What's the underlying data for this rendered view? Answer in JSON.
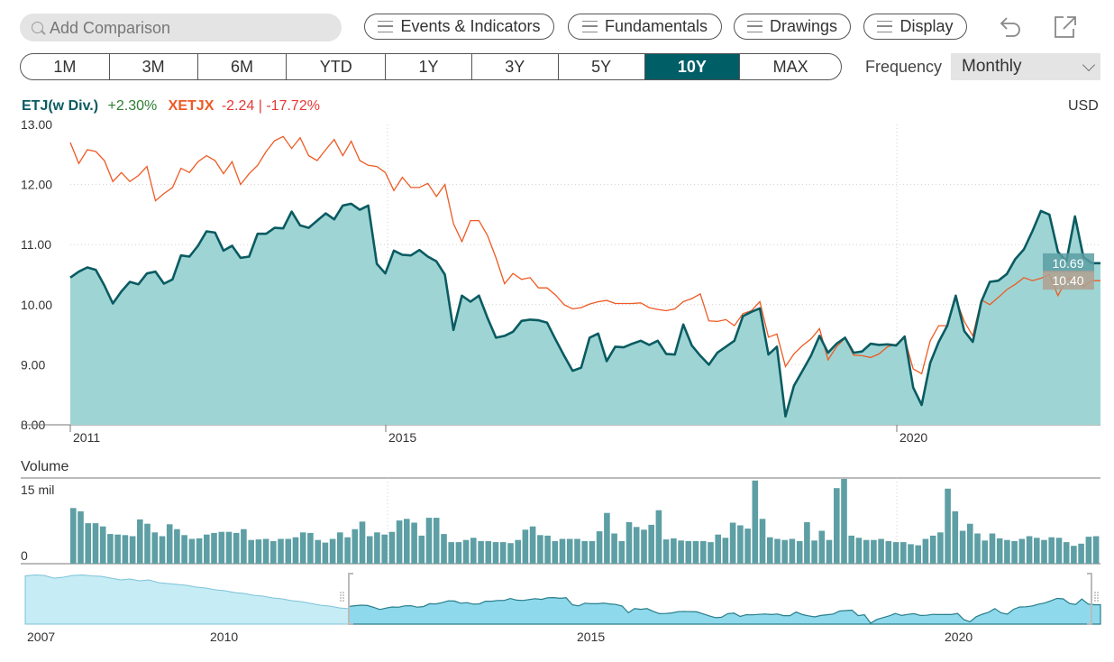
{
  "search": {
    "placeholder": "Add Comparison"
  },
  "toolbar": {
    "events_label": "Events & Indicators",
    "fundamentals_label": "Fundamentals",
    "drawings_label": "Drawings",
    "display_label": "Display"
  },
  "periods": [
    "1M",
    "3M",
    "6M",
    "YTD",
    "1Y",
    "3Y",
    "5Y",
    "10Y",
    "MAX"
  ],
  "active_period": "10Y",
  "frequency": {
    "label": "Frequency",
    "value": "Monthly"
  },
  "legend": {
    "primary_name": "ETJ(w Div.)",
    "primary_change": "+2.30%",
    "compare_name": "XETJX",
    "compare_change": "-2.24",
    "separator": "|",
    "compare_pct": "-17.72%",
    "currency": "USD"
  },
  "colors": {
    "primary_line": "#0a5b62",
    "primary_fill": "#9ed5d4",
    "compare_line": "#ee5a24",
    "volume_bar": "#5d9fa4",
    "positive_text": "#2e7d32",
    "negative_text": "#e53935",
    "active_tab": "#005e67",
    "navigator_fill": "#c6ecf5"
  },
  "chart_data": [
    {
      "type": "area",
      "y_ticks": [
        "13.00",
        "12.00",
        "11.00",
        "10.00",
        "9.00",
        "8.00"
      ],
      "x_ticks": [
        "2011",
        "2015",
        "2020"
      ],
      "ylim": [
        8,
        13
      ],
      "grid": true,
      "series": [
        {
          "name": "ETJ(w Div.)",
          "last_label": "10.69",
          "values": [
            10.45,
            10.55,
            10.62,
            10.58,
            10.32,
            10.02,
            10.22,
            10.38,
            10.34,
            10.52,
            10.55,
            10.35,
            10.42,
            10.82,
            10.8,
            10.98,
            11.22,
            11.2,
            10.9,
            10.98,
            10.78,
            10.8,
            11.18,
            11.18,
            11.28,
            11.27,
            11.55,
            11.32,
            11.28,
            11.4,
            11.52,
            11.42,
            11.65,
            11.68,
            11.58,
            11.65,
            10.68,
            10.52,
            10.9,
            10.83,
            10.82,
            10.91,
            10.8,
            10.72,
            10.5,
            9.58,
            10.15,
            10.05,
            10.15,
            9.78,
            9.45,
            9.48,
            9.55,
            9.73,
            9.75,
            9.74,
            9.7,
            9.42,
            9.15,
            8.9,
            8.95,
            9.45,
            9.52,
            9.06,
            9.3,
            9.29,
            9.35,
            9.4,
            9.33,
            9.4,
            9.18,
            9.17,
            9.67,
            9.32,
            9.15,
            9.0,
            9.2,
            9.3,
            9.4,
            9.81,
            9.88,
            9.94,
            9.17,
            9.3,
            8.14,
            8.65,
            8.9,
            9.15,
            9.48,
            9.2,
            9.35,
            9.45,
            9.2,
            9.22,
            9.35,
            9.33,
            9.34,
            9.32,
            9.47,
            8.62,
            8.33,
            9.03,
            9.38,
            9.65,
            10.15,
            9.56,
            9.38,
            10.05,
            10.38,
            10.4,
            10.51,
            10.76,
            10.92,
            11.22,
            11.56,
            11.5,
            10.88,
            10.72,
            11.47,
            10.79,
            10.69,
            10.69
          ]
        },
        {
          "name": "XETJX",
          "last_label": "10.40",
          "values": [
            12.7,
            12.35,
            12.58,
            12.55,
            12.4,
            12.05,
            12.2,
            12.05,
            12.15,
            12.3,
            11.73,
            11.85,
            11.95,
            12.27,
            12.2,
            12.38,
            12.48,
            12.4,
            12.18,
            12.38,
            12.0,
            12.18,
            12.32,
            12.55,
            12.73,
            12.8,
            12.6,
            12.78,
            12.48,
            12.4,
            12.58,
            12.75,
            12.48,
            12.72,
            12.4,
            12.32,
            12.3,
            12.2,
            11.9,
            12.12,
            11.95,
            11.95,
            12.02,
            11.8,
            12.0,
            11.35,
            11.05,
            11.4,
            11.4,
            11.15,
            10.78,
            10.35,
            10.52,
            10.42,
            10.45,
            10.28,
            10.28,
            10.16,
            10.0,
            9.93,
            9.95,
            10.01,
            10.05,
            10.07,
            10.02,
            10.02,
            10.02,
            10.03,
            9.95,
            9.92,
            9.9,
            9.93,
            10.05,
            10.1,
            10.18,
            9.73,
            9.72,
            9.75,
            9.65,
            9.85,
            9.9,
            10.05,
            9.46,
            9.51,
            8.97,
            9.18,
            9.32,
            9.43,
            9.6,
            9.08,
            9.3,
            9.44,
            9.16,
            9.15,
            9.12,
            9.18,
            9.3,
            9.34,
            9.44,
            8.93,
            8.85,
            9.4,
            9.65,
            9.65,
            10.1,
            9.72,
            9.48,
            10.08,
            10.0,
            10.12,
            10.25,
            10.34,
            10.45,
            10.4,
            10.44,
            10.5,
            10.15,
            10.42,
            10.45,
            10.3,
            10.4,
            10.4
          ]
        }
      ]
    },
    {
      "type": "bar",
      "title": "Volume",
      "y_ticks": [
        "15 mil",
        "0"
      ],
      "ylim": [
        0,
        15
      ],
      "values": [
        10.3,
        9.7,
        7.5,
        7.5,
        6.9,
        5.5,
        5.4,
        5.3,
        5.1,
        8.2,
        7.4,
        5.8,
        5.1,
        7.3,
        6.4,
        5.3,
        4.6,
        4.7,
        5.4,
        5.7,
        5.9,
        5.9,
        5.7,
        6.4,
        4.4,
        4.5,
        4.6,
        4.2,
        4.6,
        4.6,
        4.9,
        5.8,
        5.7,
        4.4,
        3.9,
        4.6,
        5.8,
        4.9,
        6.4,
        7.8,
        5.1,
        5.8,
        5.4,
        5.9,
        8.0,
        8.3,
        7.6,
        5.2,
        8.5,
        8.5,
        5.5,
        4.0,
        4.0,
        4.4,
        4.8,
        4.2,
        4.2,
        4.0,
        4.0,
        3.8,
        4.4,
        6.3,
        6.9,
        5.3,
        5.2,
        4.2,
        4.6,
        4.6,
        4.6,
        4.2,
        4.2,
        6.0,
        9.4,
        5.6,
        4.2,
        7.7,
        6.8,
        6.3,
        7.2,
        9.9,
        4.5,
        4.7,
        4.3,
        4.2,
        4.2,
        4.2,
        4.0,
        5.4,
        4.8,
        7.6,
        7.1,
        6.5,
        15.4,
        8.3,
        4.9,
        4.6,
        4.4,
        4.6,
        4.2,
        7.7,
        4.3,
        6.1,
        4.4,
        14.0,
        15.7,
        5.2,
        4.8,
        4.4,
        4.4,
        4.6,
        4.2,
        4.0,
        4.0,
        3.6,
        3.4,
        4.6,
        5.2,
        5.8,
        13.9,
        9.7,
        6.1,
        7.4,
        5.6,
        4.3,
        5.6,
        4.7,
        4.4,
        4.2,
        4.6,
        5.1,
        4.8,
        4.4,
        4.9,
        4.8,
        4.0,
        3.3,
        3.7,
        5.0,
        5.1
      ]
    },
    {
      "type": "area",
      "x_ticks": [
        "2007",
        "2010",
        "2015",
        "2020"
      ]
    }
  ]
}
